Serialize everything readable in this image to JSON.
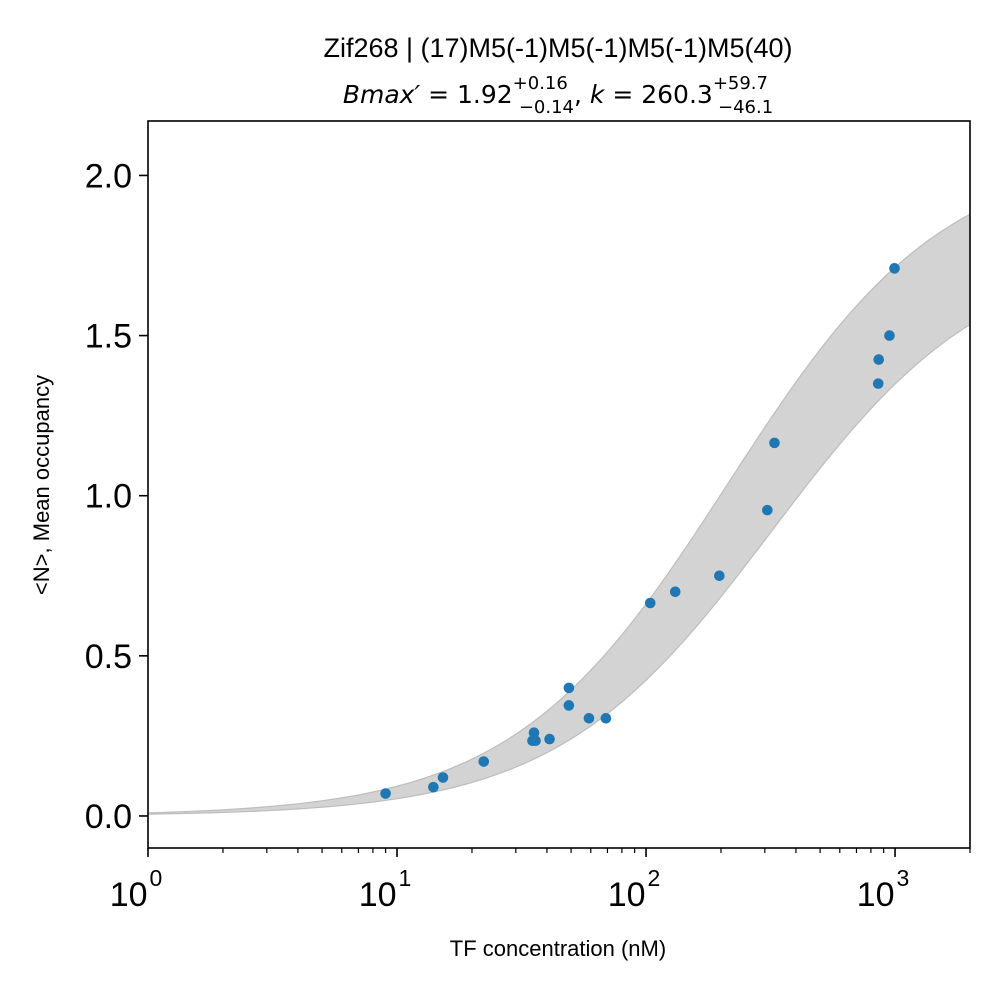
{
  "chart_data": {
    "type": "scatter",
    "title": "Zif268 | (17)M5(-1)M5(-1)M5(-1)M5(40)",
    "subtitle": {
      "bmax_symbol": "Bmax′",
      "bmax_value": "1.92",
      "bmax_upper": "+0.16",
      "bmax_lower": "−0.14",
      "k_symbol": "k",
      "k_value": "260.3",
      "k_upper": "+59.7",
      "k_lower": "−46.1"
    },
    "xlabel": "TF concentration (nM)",
    "ylabel": "<N>, Mean occupancy",
    "x_scale": "log",
    "xlim": [
      1,
      2000
    ],
    "ylim": [
      -0.1,
      2.17
    ],
    "x_ticks": [
      {
        "base": "10",
        "exp": "0"
      },
      {
        "base": "10",
        "exp": "1"
      },
      {
        "base": "10",
        "exp": "2"
      },
      {
        "base": "10",
        "exp": "3"
      }
    ],
    "y_ticks": [
      "0.0",
      "0.5",
      "1.0",
      "1.5",
      "2.0"
    ],
    "grid": false,
    "point_color": "#1f77b4",
    "band_color": "#d3d3d3",
    "points": [
      {
        "x": 9.0,
        "y": 0.07
      },
      {
        "x": 14.0,
        "y": 0.09
      },
      {
        "x": 15.3,
        "y": 0.12
      },
      {
        "x": 22.3,
        "y": 0.17
      },
      {
        "x": 35.0,
        "y": 0.235
      },
      {
        "x": 36.0,
        "y": 0.235
      },
      {
        "x": 35.5,
        "y": 0.26
      },
      {
        "x": 41.0,
        "y": 0.24
      },
      {
        "x": 49.0,
        "y": 0.345
      },
      {
        "x": 49.0,
        "y": 0.4
      },
      {
        "x": 59.0,
        "y": 0.305
      },
      {
        "x": 69.0,
        "y": 0.305
      },
      {
        "x": 104.0,
        "y": 0.665
      },
      {
        "x": 131.0,
        "y": 0.7
      },
      {
        "x": 197.0,
        "y": 0.75
      },
      {
        "x": 307.0,
        "y": 0.955
      },
      {
        "x": 328.0,
        "y": 1.165
      },
      {
        "x": 856.0,
        "y": 1.35
      },
      {
        "x": 860.0,
        "y": 1.425
      },
      {
        "x": 950.0,
        "y": 1.5
      },
      {
        "x": 995.0,
        "y": 1.71
      }
    ],
    "fit": {
      "model": "Bmax*x/(k+x)",
      "Bmax": 1.92,
      "Bmax_low": 1.78,
      "Bmax_high": 2.08,
      "k": 260.3,
      "k_low": 214.2,
      "k_high": 320.0
    }
  }
}
